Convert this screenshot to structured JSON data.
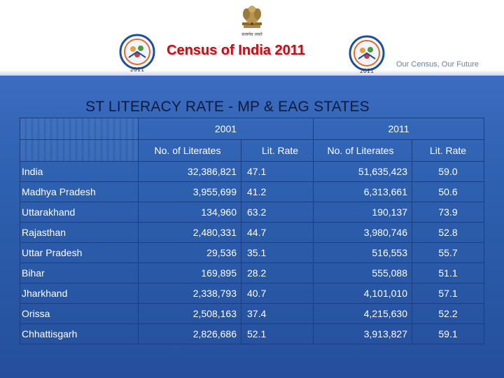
{
  "header": {
    "title": "Census of India 2011",
    "tagline": "Our Census, Our Future",
    "logo_year": "2011",
    "emblem_caption": "सत्यमेव जयते"
  },
  "slide": {
    "title": "ST LITERACY RATE - MP & EAG STATES"
  },
  "table": {
    "years": [
      "2001",
      "2011"
    ],
    "columns": [
      "No. of Literates",
      "Lit. Rate",
      "No. of Literates",
      "Lit. Rate"
    ],
    "rows": [
      {
        "state": "India",
        "lit_2001": "32,386,821",
        "rate_2001": "47.1",
        "lit_2011": "51,635,423",
        "rate_2011": "59.0"
      },
      {
        "state": "Madhya Pradesh",
        "lit_2001": "3,955,699",
        "rate_2001": "41.2",
        "lit_2011": "6,313,661",
        "rate_2011": "50.6"
      },
      {
        "state": "Uttarakhand",
        "lit_2001": "134,960",
        "rate_2001": "63.2",
        "lit_2011": "190,137",
        "rate_2011": "73.9"
      },
      {
        "state": "Rajasthan",
        "lit_2001": "2,480,331",
        "rate_2001": "44.7",
        "lit_2011": "3,980,746",
        "rate_2011": "52.8"
      },
      {
        "state": "Uttar Pradesh",
        "lit_2001": "29,536",
        "rate_2001": "35.1",
        "lit_2011": "516,553",
        "rate_2011": "55.7"
      },
      {
        "state": "Bihar",
        "lit_2001": "169,895",
        "rate_2001": "28.2",
        "lit_2011": "555,088",
        "rate_2011": "51.1"
      },
      {
        "state": "Jharkhand",
        "lit_2001": "2,338,793",
        "rate_2001": "40.7",
        "lit_2011": "4,101,010",
        "rate_2011": "57.1"
      },
      {
        "state": "Orissa",
        "lit_2001": "2,508,163",
        "rate_2001": "37.4",
        "lit_2011": "4,215,630",
        "rate_2011": "52.2"
      },
      {
        "state": "Chhattisgarh",
        "lit_2001": "2,826,686",
        "rate_2001": "52.1",
        "lit_2011": "3,913,827",
        "rate_2011": "59.1"
      }
    ]
  },
  "colors": {
    "title_red": "#c0121a",
    "slide_bg": "#2c5fae",
    "slide_title": "#0b1c3d"
  }
}
